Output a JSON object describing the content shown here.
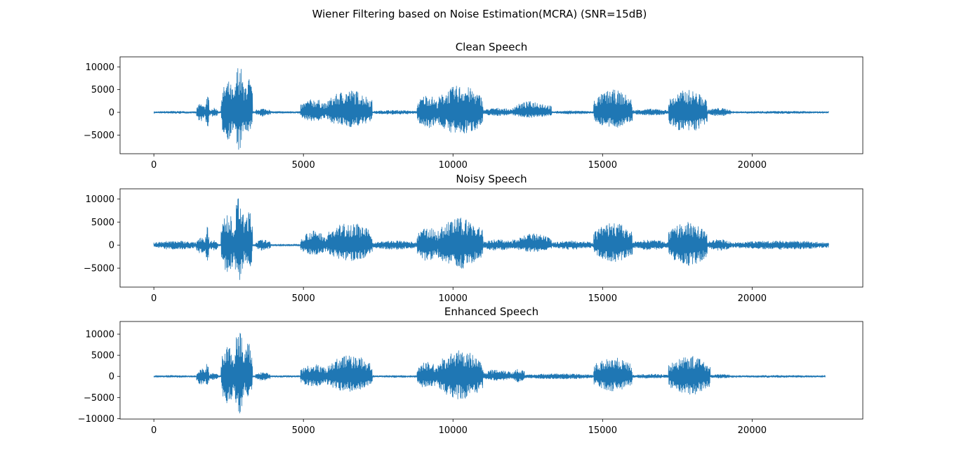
{
  "figure": {
    "suptitle": "Wiener Filtering based on Noise Estimation(MCRA) (SNR=15dB)"
  },
  "style": {
    "line_color": "#1f77b4",
    "axes_color": "#000000",
    "background": "#ffffff"
  },
  "chart_data": [
    {
      "type": "line",
      "title": "Clean Speech",
      "xlabel": "",
      "ylabel": "",
      "xlim": [
        -1130,
        23700
      ],
      "ylim": [
        -9100,
        12200
      ],
      "xticks": [
        0,
        5000,
        10000,
        15000,
        20000
      ],
      "yticks": [
        -5000,
        0,
        5000,
        10000
      ],
      "grid": false,
      "series": [
        {
          "x_end": 22560,
          "segments": [
            {
              "x": [
                0,
                1430
              ],
              "amp": [
                300,
                300
              ]
            },
            {
              "x": [
                1430,
                1720
              ],
              "amp": [
                2000,
                2000
              ]
            },
            {
              "x": [
                1720,
                1850
              ],
              "amp": [
                4000,
                -3500
              ]
            },
            {
              "x": [
                1850,
                2150
              ],
              "amp": [
                1000,
                1000
              ]
            },
            {
              "x": [
                2250,
                2700
              ],
              "amp": [
                7000,
                -6000
              ]
            },
            {
              "x": [
                2700,
                3000
              ],
              "amp": [
                11000,
                -8700
              ]
            },
            {
              "x": [
                3000,
                3300
              ],
              "amp": [
                8000,
                -5500
              ]
            },
            {
              "x": [
                3400,
                3900
              ],
              "amp": [
                900,
                -900
              ]
            },
            {
              "x": [
                4900,
                5800
              ],
              "amp": [
                3000,
                -2000
              ]
            },
            {
              "x": [
                5800,
                7300
              ],
              "amp": [
                5000,
                -3300
              ]
            },
            {
              "x": [
                7300,
                8800
              ],
              "amp": [
                500,
                -500
              ]
            },
            {
              "x": [
                8800,
                9500
              ],
              "amp": [
                4000,
                -3500
              ]
            },
            {
              "x": [
                9500,
                11000
              ],
              "amp": [
                6000,
                -5000
              ]
            },
            {
              "x": [
                11000,
                12000
              ],
              "amp": [
                1000,
                -800
              ]
            },
            {
              "x": [
                12000,
                13300
              ],
              "amp": [
                2500,
                -1200
              ]
            },
            {
              "x": [
                13300,
                14700
              ],
              "amp": [
                400,
                -400
              ]
            },
            {
              "x": [
                14700,
                16000
              ],
              "amp": [
                5000,
                -3500
              ]
            },
            {
              "x": [
                16000,
                17200
              ],
              "amp": [
                800,
                -700
              ]
            },
            {
              "x": [
                17200,
                18500
              ],
              "amp": [
                5000,
                -4500
              ]
            },
            {
              "x": [
                18500,
                19300
              ],
              "amp": [
                1000,
                -800
              ]
            },
            {
              "x": [
                19300,
                22560
              ],
              "amp": [
                300,
                -300
              ]
            }
          ]
        }
      ]
    },
    {
      "type": "line",
      "title": "Noisy Speech",
      "xlabel": "",
      "ylabel": "",
      "xlim": [
        -1130,
        23700
      ],
      "ylim": [
        -9100,
        12200
      ],
      "xticks": [
        0,
        5000,
        10000,
        15000,
        20000
      ],
      "yticks": [
        -5000,
        0,
        5000,
        10000
      ],
      "grid": false,
      "series": [
        {
          "x_end": 22560,
          "segments": [
            {
              "x": [
                0,
                1430
              ],
              "amp": [
                1000,
                -1000
              ]
            },
            {
              "x": [
                1430,
                1720
              ],
              "amp": [
                2000,
                -2000
              ]
            },
            {
              "x": [
                1720,
                1850
              ],
              "amp": [
                4000,
                -3500
              ]
            },
            {
              "x": [
                1850,
                2150
              ],
              "amp": [
                1200,
                -1200
              ]
            },
            {
              "x": [
                2250,
                2700
              ],
              "amp": [
                7000,
                -6000
              ]
            },
            {
              "x": [
                2700,
                3000
              ],
              "amp": [
                11000,
                -8800
              ]
            },
            {
              "x": [
                3000,
                3300
              ],
              "amp": [
                8000,
                -5500
              ]
            },
            {
              "x": [
                3400,
                3900
              ],
              "amp": [
                1200,
                -1200
              ]
            },
            {
              "x": [
                4900,
                5800
              ],
              "amp": [
                3200,
                -2200
              ]
            },
            {
              "x": [
                5800,
                7300
              ],
              "amp": [
                5000,
                -3500
              ]
            },
            {
              "x": [
                7300,
                8800
              ],
              "amp": [
                1000,
                -1000
              ]
            },
            {
              "x": [
                8800,
                9500
              ],
              "amp": [
                4000,
                -3500
              ]
            },
            {
              "x": [
                9500,
                11000
              ],
              "amp": [
                6000,
                -5200
              ]
            },
            {
              "x": [
                11000,
                12000
              ],
              "amp": [
                1300,
                -1200
              ]
            },
            {
              "x": [
                12000,
                13300
              ],
              "amp": [
                2500,
                -1500
              ]
            },
            {
              "x": [
                13300,
                14700
              ],
              "amp": [
                1000,
                -1000
              ]
            },
            {
              "x": [
                14700,
                16000
              ],
              "amp": [
                5000,
                -3700
              ]
            },
            {
              "x": [
                16000,
                17200
              ],
              "amp": [
                1200,
                -1100
              ]
            },
            {
              "x": [
                17200,
                18500
              ],
              "amp": [
                5000,
                -4500
              ]
            },
            {
              "x": [
                18500,
                19300
              ],
              "amp": [
                1300,
                -1200
              ]
            },
            {
              "x": [
                19300,
                22560
              ],
              "amp": [
                1000,
                -1000
              ]
            }
          ]
        }
      ]
    },
    {
      "type": "line",
      "title": "Enhanced Speech",
      "xlabel": "",
      "ylabel": "",
      "xlim": [
        -1130,
        23700
      ],
      "ylim": [
        -10100,
        13000
      ],
      "xticks": [
        0,
        5000,
        10000,
        15000,
        20000
      ],
      "yticks": [
        -10000,
        -5000,
        0,
        5000,
        10000
      ],
      "grid": false,
      "series": [
        {
          "x_end": 22450,
          "segments": [
            {
              "x": [
                0,
                1430
              ],
              "amp": [
                300,
                -300
              ]
            },
            {
              "x": [
                1430,
                1720
              ],
              "amp": [
                2000,
                -2000
              ]
            },
            {
              "x": [
                1720,
                1850
              ],
              "amp": [
                3200,
                -2800
              ]
            },
            {
              "x": [
                1850,
                2150
              ],
              "amp": [
                800,
                -800
              ]
            },
            {
              "x": [
                2250,
                2700
              ],
              "amp": [
                7500,
                -6500
              ]
            },
            {
              "x": [
                2700,
                3000
              ],
              "amp": [
                12000,
                -9000
              ]
            },
            {
              "x": [
                3000,
                3300
              ],
              "amp": [
                8000,
                -5500
              ]
            },
            {
              "x": [
                3400,
                3900
              ],
              "amp": [
                1000,
                -1000
              ]
            },
            {
              "x": [
                4900,
                5800
              ],
              "amp": [
                3000,
                -2500
              ]
            },
            {
              "x": [
                5800,
                7300
              ],
              "amp": [
                5200,
                -3700
              ]
            },
            {
              "x": [
                7300,
                8800
              ],
              "amp": [
                300,
                -300
              ]
            },
            {
              "x": [
                8800,
                9500
              ],
              "amp": [
                3500,
                -3000
              ]
            },
            {
              "x": [
                9500,
                11000
              ],
              "amp": [
                6200,
                -5500
              ]
            },
            {
              "x": [
                11000,
                12000
              ],
              "amp": [
                1800,
                -1000
              ]
            },
            {
              "x": [
                12000,
                12400
              ],
              "amp": [
                2000,
                -1500
              ]
            },
            {
              "x": [
                12400,
                14700
              ],
              "amp": [
                700,
                -700
              ]
            },
            {
              "x": [
                14700,
                16000
              ],
              "amp": [
                4800,
                -3500
              ]
            },
            {
              "x": [
                16000,
                17200
              ],
              "amp": [
                600,
                -500
              ]
            },
            {
              "x": [
                17200,
                18600
              ],
              "amp": [
                5000,
                -4500
              ]
            },
            {
              "x": [
                18600,
                19300
              ],
              "amp": [
                600,
                -500
              ]
            },
            {
              "x": [
                19300,
                22450
              ],
              "amp": [
                300,
                -300
              ]
            }
          ]
        }
      ]
    }
  ]
}
